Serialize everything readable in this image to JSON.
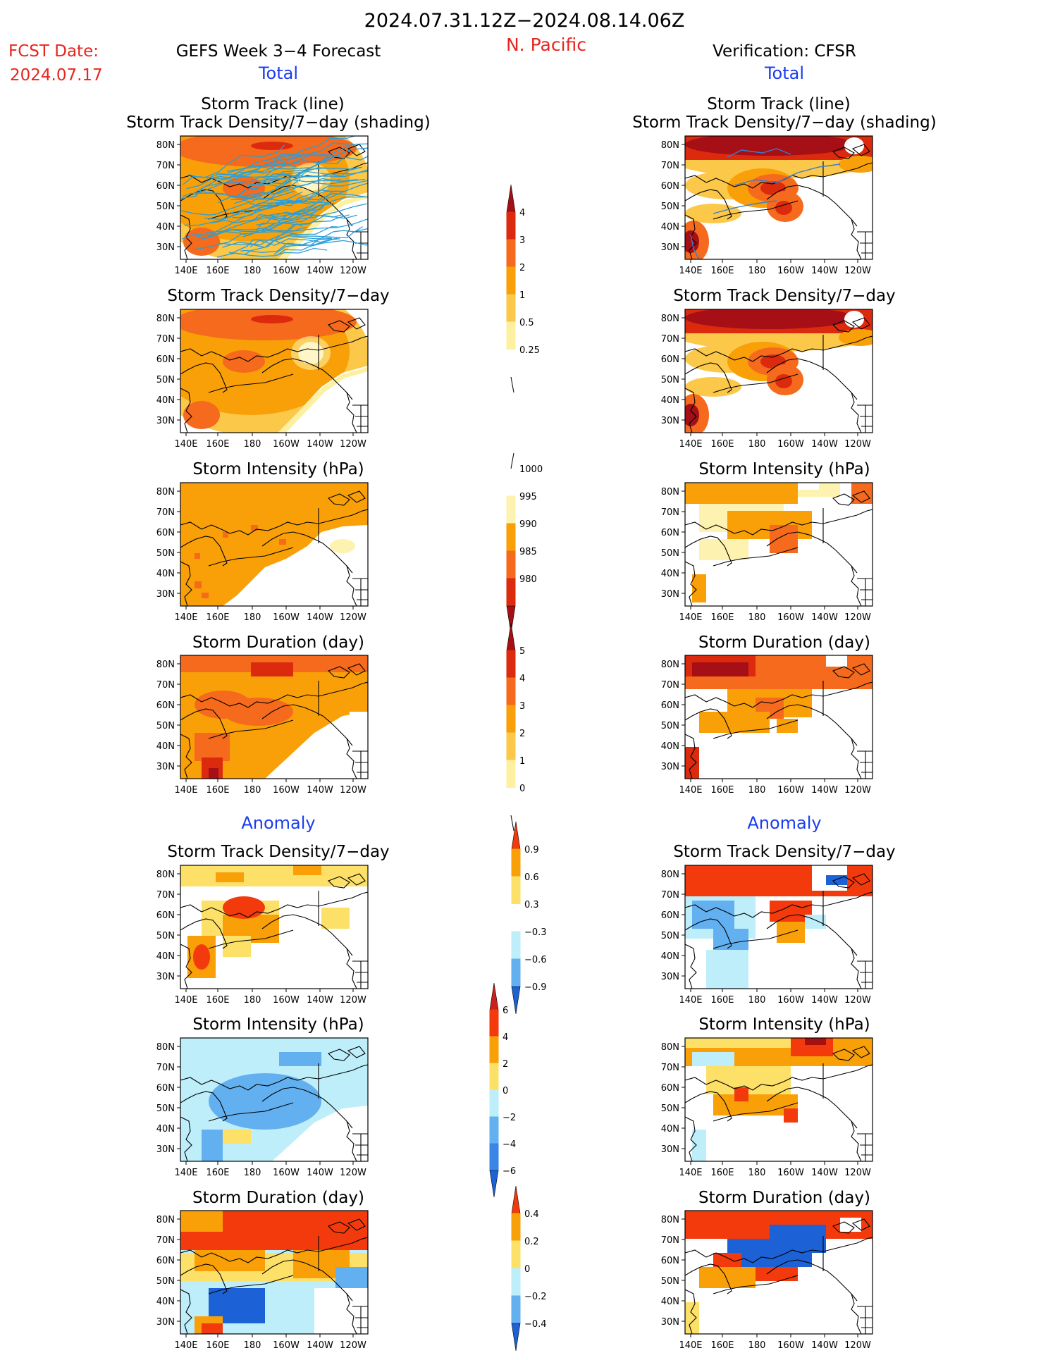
{
  "header": {
    "date_range": "2024.07.31.12Z−2024.08.14.06Z",
    "region": "N. Pacific",
    "fcst_label": "FCST Date:",
    "fcst_date": "2024.07.17",
    "forecast_title": "GEFS Week 3−4 Forecast",
    "verification_title": "Verification: CFSR",
    "total_label": "Total",
    "anomaly_label": "Anomaly"
  },
  "panel_titles": {
    "track_line": "Storm Track (line)",
    "track_shading": "Storm Track Density/7−day (shading)",
    "density": "Storm Track Density/7−day",
    "intensity": "Storm Intensity (hPa)",
    "duration": "Storm Duration (day)"
  },
  "map_axes": {
    "lat_labels": [
      "80N",
      "70N",
      "60N",
      "50N",
      "40N",
      "30N"
    ],
    "lon_labels": [
      "140E",
      "160E",
      "180",
      "160W",
      "140W",
      "120W"
    ]
  },
  "colorbars": [
    {
      "id": "density_total",
      "labels": [
        "4",
        "3",
        "2",
        "1",
        "0.5",
        "0.25"
      ],
      "colors": [
        "#a50f15",
        "#dc2a0e",
        "#f56a1c",
        "#f9a008",
        "#fbc84a",
        "#fdf0a0",
        "#ffffff"
      ]
    },
    {
      "id": "intensity_total",
      "labels": [
        "1000",
        "995",
        "990",
        "985",
        "980"
      ],
      "colors": [
        "#ffffff",
        "#fdf2b0",
        "#f9a008",
        "#f56a1c",
        "#dc2a0e",
        "#a50f15"
      ]
    },
    {
      "id": "duration_total",
      "labels": [
        "5",
        "4",
        "3",
        "2",
        "1",
        "0"
      ],
      "colors": [
        "#a50f15",
        "#dc2a0e",
        "#f56a1c",
        "#f9a008",
        "#fbc84a",
        "#fdf0a0",
        "#ffffff"
      ]
    },
    {
      "id": "density_anom",
      "labels": [
        "0.9",
        "0.6",
        "0.3",
        "−0.3",
        "−0.6",
        "−0.9"
      ],
      "colors": [
        "#f23a0c",
        "#f9a008",
        "#fde068",
        "#ffffff",
        "#bdeefa",
        "#63b0f0",
        "#1c62d6"
      ]
    },
    {
      "id": "intensity_anom",
      "labels": [
        "6",
        "4",
        "2",
        "0",
        "−2",
        "−4",
        "−6"
      ],
      "colors": [
        "#c8231a",
        "#f23a0c",
        "#f9a008",
        "#fde068",
        "#bdeefa",
        "#63b0f0",
        "#3a86e6",
        "#1c62d6"
      ]
    },
    {
      "id": "duration_anom",
      "labels": [
        "0.4",
        "0.2",
        "0",
        "−0.2",
        "−0.4"
      ],
      "colors": [
        "#f23a0c",
        "#f9a008",
        "#fde068",
        "#bdeefa",
        "#63b0f0",
        "#1c62d6"
      ]
    }
  ]
}
